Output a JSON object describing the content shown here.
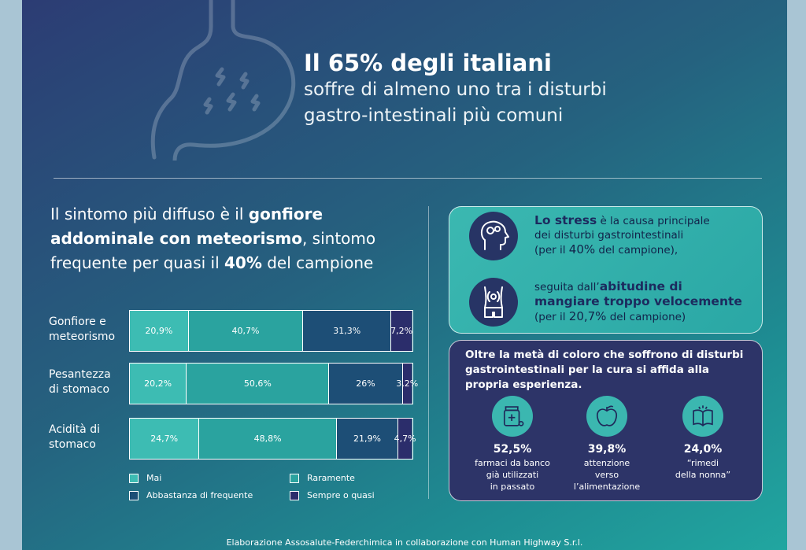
{
  "headline": {
    "big": "Il 65% degli italiani",
    "line1": "soffre di almeno uno tra i disturbi",
    "line2": "gastro-intestinali più comuni"
  },
  "intro": {
    "t1": "Il sintomo più diffuso è il ",
    "b1": "gonfiore",
    "b2": "addominale con meteorismo",
    "t2": ", sintomo",
    "t3": "frequente per quasi il ",
    "b3": "40%",
    "t4": " del campione"
  },
  "chart_data": {
    "type": "bar",
    "orientation": "horizontal-stacked-100",
    "categories": [
      [
        "Gonfiore e",
        "meteorismo"
      ],
      [
        "Pesantezza",
        "di stomaco"
      ],
      [
        "Acidità di",
        "stomaco"
      ]
    ],
    "series": [
      {
        "name": "Mai",
        "color": "#3dbcb3",
        "values": [
          20.9,
          20.2,
          24.7
        ],
        "labels": [
          "20,9%",
          "20,2%",
          "24,7%"
        ]
      },
      {
        "name": "Raramente",
        "color": "#2aa39f",
        "values": [
          40.7,
          50.6,
          48.8
        ],
        "labels": [
          "40,7%",
          "50,6%",
          "48,8%"
        ]
      },
      {
        "name": "Abbastanza di frequente",
        "color": "#1d4e76",
        "values": [
          31.3,
          26,
          21.9
        ],
        "labels": [
          "31,3%",
          "26%",
          "21,9%"
        ]
      },
      {
        "name": "Sempre o quasi",
        "color": "#2b2d6b",
        "values": [
          7.2,
          3.2,
          4.7
        ],
        "labels": [
          "7,2%",
          "3,2%",
          "4,7%"
        ]
      }
    ]
  },
  "stress": {
    "l1_bold": "Lo stress",
    "l1_rest": " è la causa principale",
    "l2": "dei disturbi gastrointestinali",
    "l3_a": "(per il ",
    "l3_pc": "40%",
    "l3_b": " del campione),",
    "m1_rest": "seguita dall’",
    "m1_bold": "abitudine di",
    "m2_bold": "mangiare troppo velocemente",
    "m3_a": "(per il ",
    "m3_pc": "20,7%",
    "m3_b": " del campione)"
  },
  "home": {
    "title": "Oltre la metà di coloro che soffrono di disturbi gastrointestinali per la cura si affida alla propria esperienza.",
    "stats": [
      {
        "value": "52,5%",
        "lines": [
          "farmaci da banco",
          "già utilizzati",
          "in passato"
        ]
      },
      {
        "value": "39,8%",
        "lines": [
          "attenzione",
          "verso",
          "l’alimentazione"
        ]
      },
      {
        "value": "24,0%",
        "lines": [
          "“rimedi",
          "della nonna”"
        ]
      }
    ]
  },
  "footer": "Elaborazione Assosalute-Federchimica in collaborazione con Human Highway S.r.l."
}
